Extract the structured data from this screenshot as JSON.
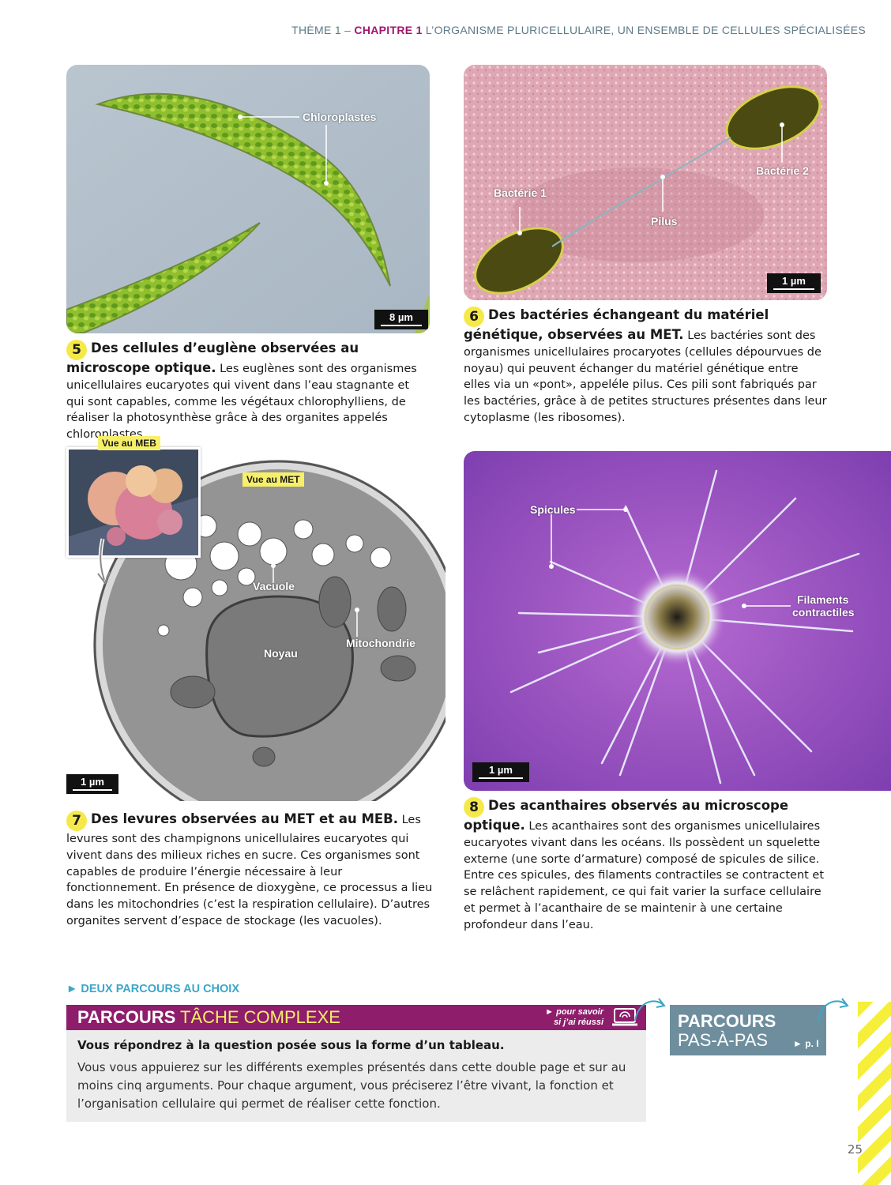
{
  "header": {
    "theme": "THÈME 1 –",
    "chapter": "CHAPITRE 1",
    "title": "L’ORGANISME PLURICELLULAIRE, UN ENSEMBLE DE CELLULES SPÉCIALISÉES"
  },
  "doc5": {
    "scale": "8 µm",
    "labels": {
      "chloroplastes": "Chloroplastes"
    },
    "number": "5",
    "title": "Des cellules d’euglène observées au microscope optique.",
    "text": "Les euglènes sont des organismes unicellulaires eucaryotes qui vivent dans l’eau stagnante et qui sont capables, comme les végétaux chlorophylliens, de réaliser la photosynthèse grâce à des organites appelés chloroplastes."
  },
  "doc6": {
    "scale": "1 µm",
    "labels": {
      "bact1": "Bactérie 1",
      "bact2": "Bactérie 2",
      "pilus": "Pilus"
    },
    "number": "6",
    "title": "Des bactéries échangeant du matériel génétique, observées au MET.",
    "text": "Les bactéries sont des organismes unicellulaires procaryotes (cellules dépourvues de noyau) qui peuvent échanger du matériel génétique entre elles via un «pont», appeléle pilus. Ces pili sont fabriqués par les bactéries, grâce à de petites structures présentes dans leur cytoplasme (les ribosomes)."
  },
  "doc7": {
    "tag_meb": "Vue au MEB",
    "tag_met": "Vue au MET",
    "scale": "1 µm",
    "labels": {
      "vacuole": "Vacuole",
      "noyau": "Noyau",
      "mito": "Mitochondrie"
    },
    "number": "7",
    "title": "Des levures observées au MET et au MEB.",
    "text": "Les levures sont des champignons unicellulaires eucaryotes qui vivent dans des milieux riches en sucre. Ces organismes sont capables de produire l’énergie nécessaire à leur fonctionnement. En présence de dioxygène, ce processus a lieu dans les mitochondries (c’est la respiration cellulaire). D’autres organites servent d’espace de stockage (les vacuoles)."
  },
  "doc8": {
    "scale": "1 µm",
    "labels": {
      "spicules": "Spicules",
      "filaments1": "Filaments",
      "filaments2": "contractiles"
    },
    "number": "8",
    "title": "Des acanthaires observés au microscope optique.",
    "text": "Les acanthaires sont des organismes unicellulaires eucaryotes vivant dans les océans. Ils possèdent un squelette externe (une sorte d’armature) composé de spicules de silice. Entre ces spicules, des filaments contractiles se contractent et se relâchent rapidement, ce qui fait varier la surface cellulaire et permet à l’acanthaire de se maintenir à une certaine profondeur dans l’eau."
  },
  "parcours": {
    "intro": "DEUX PARCOURS AU CHOIX",
    "tache_word1": "PARCOURS",
    "tache_word2": "TÂCHE COMPLEXE",
    "pour_savoir": "pour savoir si j’ai réussi",
    "question": "Vous répondrez à la question posée sous la forme d’un tableau.",
    "body": "Vous vous appuierez sur les différents exemples présentés dans cette double page et sur au moins cinq arguments. Pour chaque argument, vous préciserez l’être vivant, la fonction et l’organisation cellulaire qui permet de réaliser cette fonction.",
    "pap_word1": "PARCOURS",
    "pap_word2": "PAS-À-PAS",
    "pap_ref": "p. I"
  },
  "page_number": "25"
}
